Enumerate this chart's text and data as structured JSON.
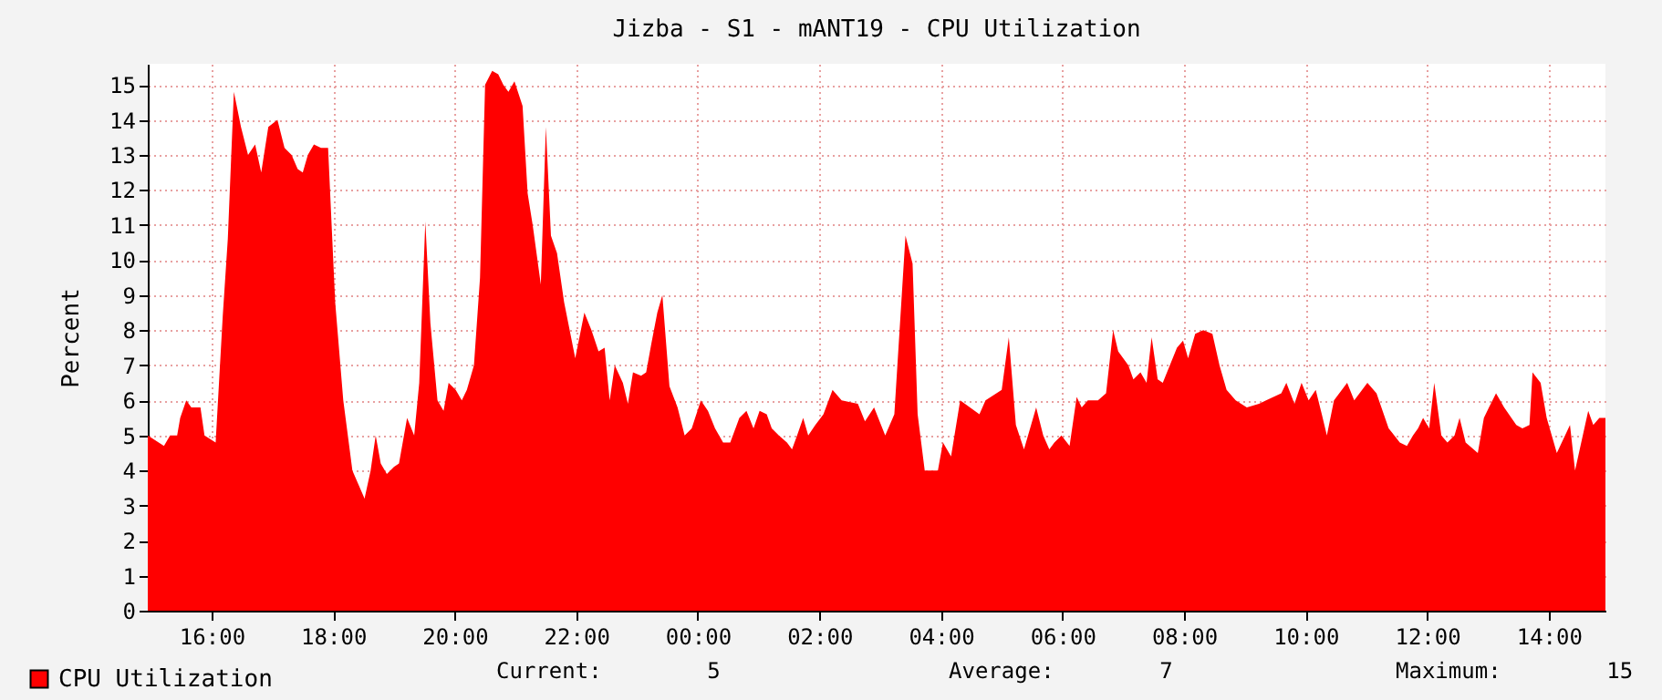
{
  "chart_data": {
    "type": "area",
    "title": "Jizba - S1 - mANT19 - CPU Utilization",
    "ylabel": "Percent",
    "x": [
      "--01-01T14:57",
      "--01-01T15:13",
      "--01-01T15:19",
      "--01-01T15:26",
      "--01-01T15:29",
      "--01-01T15:35",
      "--01-01T15:40",
      "--01-01T15:49",
      "--01-01T15:53",
      "--01-01T16:04",
      "--01-01T16:11",
      "--01-01T16:16",
      "--01-01T16:22",
      "--01-01T16:29",
      "--01-01T16:36",
      "--01-01T16:43",
      "--01-01T16:49",
      "--01-01T16:56",
      "--01-01T17:05",
      "--01-01T17:12",
      "--01-01T17:19",
      "--01-01T17:25",
      "--01-01T17:30",
      "--01-01T17:35",
      "--01-01T17:41",
      "--01-01T17:48",
      "--01-01T17:55",
      "--01-01T18:02",
      "--01-01T18:10",
      "--01-01T18:19",
      "--01-01T18:31",
      "--01-01T18:37",
      "--01-01T18:42",
      "--01-01T18:47",
      "--01-01T18:53",
      "--01-01T19:00",
      "--01-01T19:05",
      "--01-01T19:13",
      "--01-01T19:20",
      "--01-01T19:25",
      "--01-01T19:31",
      "--01-01T19:36",
      "--01-01T19:43",
      "--01-01T19:49",
      "--01-01T19:54",
      "--01-01T20:01",
      "--01-01T20:07",
      "--01-01T20:12",
      "--01-01T20:19",
      "--01-01T20:25",
      "--01-01T20:30",
      "--01-01T20:37",
      "--01-01T20:43",
      "--01-01T20:48",
      "--01-01T20:53",
      "--01-01T20:59",
      "--01-01T21:07",
      "--01-01T21:12",
      "--01-01T21:17",
      "--01-01T21:25",
      "--01-01T21:30",
      "--01-01T21:35",
      "--01-01T21:41",
      "--01-01T21:48",
      "--01-01T21:59",
      "--01-01T22:08",
      "--01-01T22:15",
      "--01-01T22:22",
      "--01-01T22:28",
      "--01-01T22:33",
      "--01-01T22:38",
      "--01-01T22:46",
      "--01-01T22:51",
      "--01-01T22:56",
      "--01-01T23:04",
      "--01-01T23:09",
      "--01-01T23:14",
      "--01-01T23:20",
      "--01-01T23:25",
      "--01-01T23:32",
      "--01-01T23:40",
      "--01-01T23:47",
      "--01-01T23:54",
      "--01-02T00:03",
      "--01-02T00:10",
      "--01-02T00:17",
      "--01-02T00:25",
      "--01-02T00:32",
      "--01-02T00:41",
      "--01-02T00:48",
      "--01-02T00:55",
      "--01-02T01:01",
      "--01-02T01:08",
      "--01-02T01:13",
      "--01-02T01:20",
      "--01-02T01:28",
      "--01-02T01:33",
      "--01-02T01:38",
      "--01-02T01:44",
      "--01-02T01:49",
      "--01-02T01:56",
      "--01-02T02:04",
      "--01-02T02:13",
      "--01-02T02:22",
      "--01-02T02:38",
      "--01-02T02:45",
      "--01-02T02:54",
      "--01-02T03:05",
      "--01-02T03:14",
      "--01-02T03:25",
      "--01-02T03:32",
      "--01-02T03:37",
      "--01-02T03:44",
      "--01-02T03:57",
      "--01-02T04:02",
      "--01-02T04:10",
      "--01-02T04:19",
      "--01-02T04:38",
      "--01-02T04:44",
      "--01-02T05:00",
      "--01-02T05:07",
      "--01-02T05:14",
      "--01-02T05:22",
      "--01-02T05:29",
      "--01-02T05:34",
      "--01-02T05:41",
      "--01-02T05:47",
      "--01-02T05:52",
      "--01-02T05:59",
      "--01-02T06:07",
      "--01-02T06:14",
      "--01-02T06:19",
      "--01-02T06:25",
      "--01-02T06:35",
      "--01-02T06:43",
      "--01-02T06:50",
      "--01-02T06:55",
      "--01-02T07:05",
      "--01-02T07:10",
      "--01-02T07:17",
      "--01-02T07:23",
      "--01-02T07:28",
      "--01-02T07:34",
      "--01-02T07:39",
      "--01-02T07:46",
      "--01-02T07:53",
      "--01-02T07:59",
      "--01-02T08:04",
      "--01-02T08:11",
      "--01-02T08:19",
      "--01-02T08:28",
      "--01-02T08:35",
      "--01-02T08:42",
      "--01-02T08:51",
      "--01-02T09:02",
      "--01-02T09:14",
      "--01-02T09:21",
      "--01-02T09:36",
      "--01-02T09:41",
      "--01-02T09:49",
      "--01-02T09:56",
      "--01-02T10:03",
      "--01-02T10:10",
      "--01-02T10:16",
      "--01-02T10:21",
      "--01-02T10:28",
      "--01-02T10:41",
      "--01-02T10:48",
      "--01-02T11:01",
      "--01-02T11:10",
      "--01-02T11:22",
      "--01-02T11:33",
      "--01-02T11:40",
      "--01-02T11:46",
      "--01-02T11:51",
      "--01-02T11:56",
      "--01-02T12:02",
      "--01-02T12:07",
      "--01-02T12:14",
      "--01-02T12:20",
      "--01-02T12:27",
      "--01-02T12:32",
      "--01-02T12:38",
      "--01-02T12:50",
      "--01-02T12:56",
      "--01-02T13:01",
      "--01-02T13:08",
      "--01-02T13:16",
      "--01-02T13:28",
      "--01-02T13:34",
      "--01-02T13:41",
      "--01-02T13:44",
      "--01-02T13:52",
      "--01-02T13:58",
      "--01-02T14:03",
      "--01-02T14:08",
      "--01-02T14:21",
      "--01-02T14:26",
      "--01-02T14:39",
      "--01-02T14:44",
      "--01-02T14:50",
      "--01-02T14:56"
    ],
    "series": [
      {
        "name": "CPU Utilization",
        "color": "#ff0000",
        "values": [
          5.0,
          4.7,
          5.0,
          5.0,
          5.5,
          6.0,
          5.8,
          5.8,
          5.0,
          4.8,
          8.4,
          10.6,
          14.8,
          13.8,
          13.0,
          13.3,
          12.5,
          13.8,
          14.0,
          13.2,
          13.0,
          12.6,
          12.5,
          13.0,
          13.3,
          13.2,
          13.2,
          8.8,
          6.0,
          4.0,
          3.2,
          4.0,
          5.0,
          4.2,
          3.9,
          4.1,
          4.2,
          5.5,
          5.0,
          6.5,
          11.1,
          8.2,
          6.0,
          5.7,
          6.5,
          6.3,
          6.0,
          6.3,
          7.0,
          9.5,
          15.0,
          15.4,
          15.3,
          15.0,
          14.8,
          15.1,
          14.4,
          11.9,
          11.0,
          9.3,
          13.8,
          10.7,
          10.2,
          8.8,
          7.2,
          8.5,
          8.0,
          7.4,
          7.5,
          6.0,
          7.0,
          6.5,
          5.9,
          6.8,
          6.7,
          6.8,
          7.6,
          8.5,
          9.0,
          6.4,
          5.8,
          5.0,
          5.2,
          6.0,
          5.7,
          5.2,
          4.8,
          4.8,
          5.5,
          5.7,
          5.2,
          5.7,
          5.6,
          5.2,
          5.0,
          4.8,
          4.6,
          5.0,
          5.5,
          5.0,
          5.3,
          5.6,
          6.3,
          6.0,
          5.9,
          5.4,
          5.8,
          5.0,
          5.6,
          10.7,
          9.9,
          5.6,
          4.0,
          4.0,
          4.8,
          4.4,
          6.0,
          5.6,
          6.0,
          6.3,
          7.8,
          5.3,
          4.6,
          5.3,
          5.8,
          5.0,
          4.6,
          4.8,
          5.0,
          4.7,
          6.1,
          5.8,
          6.0,
          6.0,
          6.2,
          8.0,
          7.4,
          7.0,
          6.6,
          6.8,
          6.5,
          7.8,
          6.6,
          6.5,
          7.0,
          7.5,
          7.7,
          7.2,
          7.9,
          8.0,
          7.9,
          7.0,
          6.3,
          6.0,
          5.8,
          5.9,
          6.0,
          6.2,
          6.5,
          5.9,
          6.5,
          6.0,
          6.3,
          5.6,
          5.0,
          6.0,
          6.5,
          6.0,
          6.5,
          6.2,
          5.2,
          4.8,
          4.7,
          5.0,
          5.2,
          5.5,
          5.2,
          6.5,
          5.0,
          4.8,
          5.0,
          5.5,
          4.8,
          4.5,
          5.5,
          5.8,
          6.2,
          5.8,
          5.3,
          5.2,
          5.3,
          6.8,
          6.5,
          5.5,
          5.0,
          4.5,
          5.3,
          4.0,
          5.7,
          5.3,
          5.5,
          5.5
        ]
      }
    ],
    "xlim": [
      "--01-01T14:57",
      "--01-02T14:56"
    ],
    "xticks": [
      {
        "value": "--01-01T16:00",
        "label": "16:00"
      },
      {
        "value": "--01-01T18:00",
        "label": "18:00"
      },
      {
        "value": "--01-01T20:00",
        "label": "20:00"
      },
      {
        "value": "--01-01T22:00",
        "label": "22:00"
      },
      {
        "value": "--01-02T00:00",
        "label": "00:00"
      },
      {
        "value": "--01-02T02:00",
        "label": "02:00"
      },
      {
        "value": "--01-02T04:00",
        "label": "04:00"
      },
      {
        "value": "--01-02T06:00",
        "label": "06:00"
      },
      {
        "value": "--01-02T08:00",
        "label": "08:00"
      },
      {
        "value": "--01-02T10:00",
        "label": "10:00"
      },
      {
        "value": "--01-02T12:00",
        "label": "12:00"
      },
      {
        "value": "--01-02T14:00",
        "label": "14:00"
      }
    ],
    "ylim": [
      0,
      15.6
    ],
    "yticks": [
      0,
      1,
      2,
      3,
      4,
      5,
      6,
      7,
      8,
      9,
      10,
      11,
      12,
      13,
      14,
      15
    ],
    "grid": true,
    "legend": "bottom left",
    "annotations": [
      "Current:        5",
      "Average:        7",
      "Maximum:        15"
    ]
  }
}
